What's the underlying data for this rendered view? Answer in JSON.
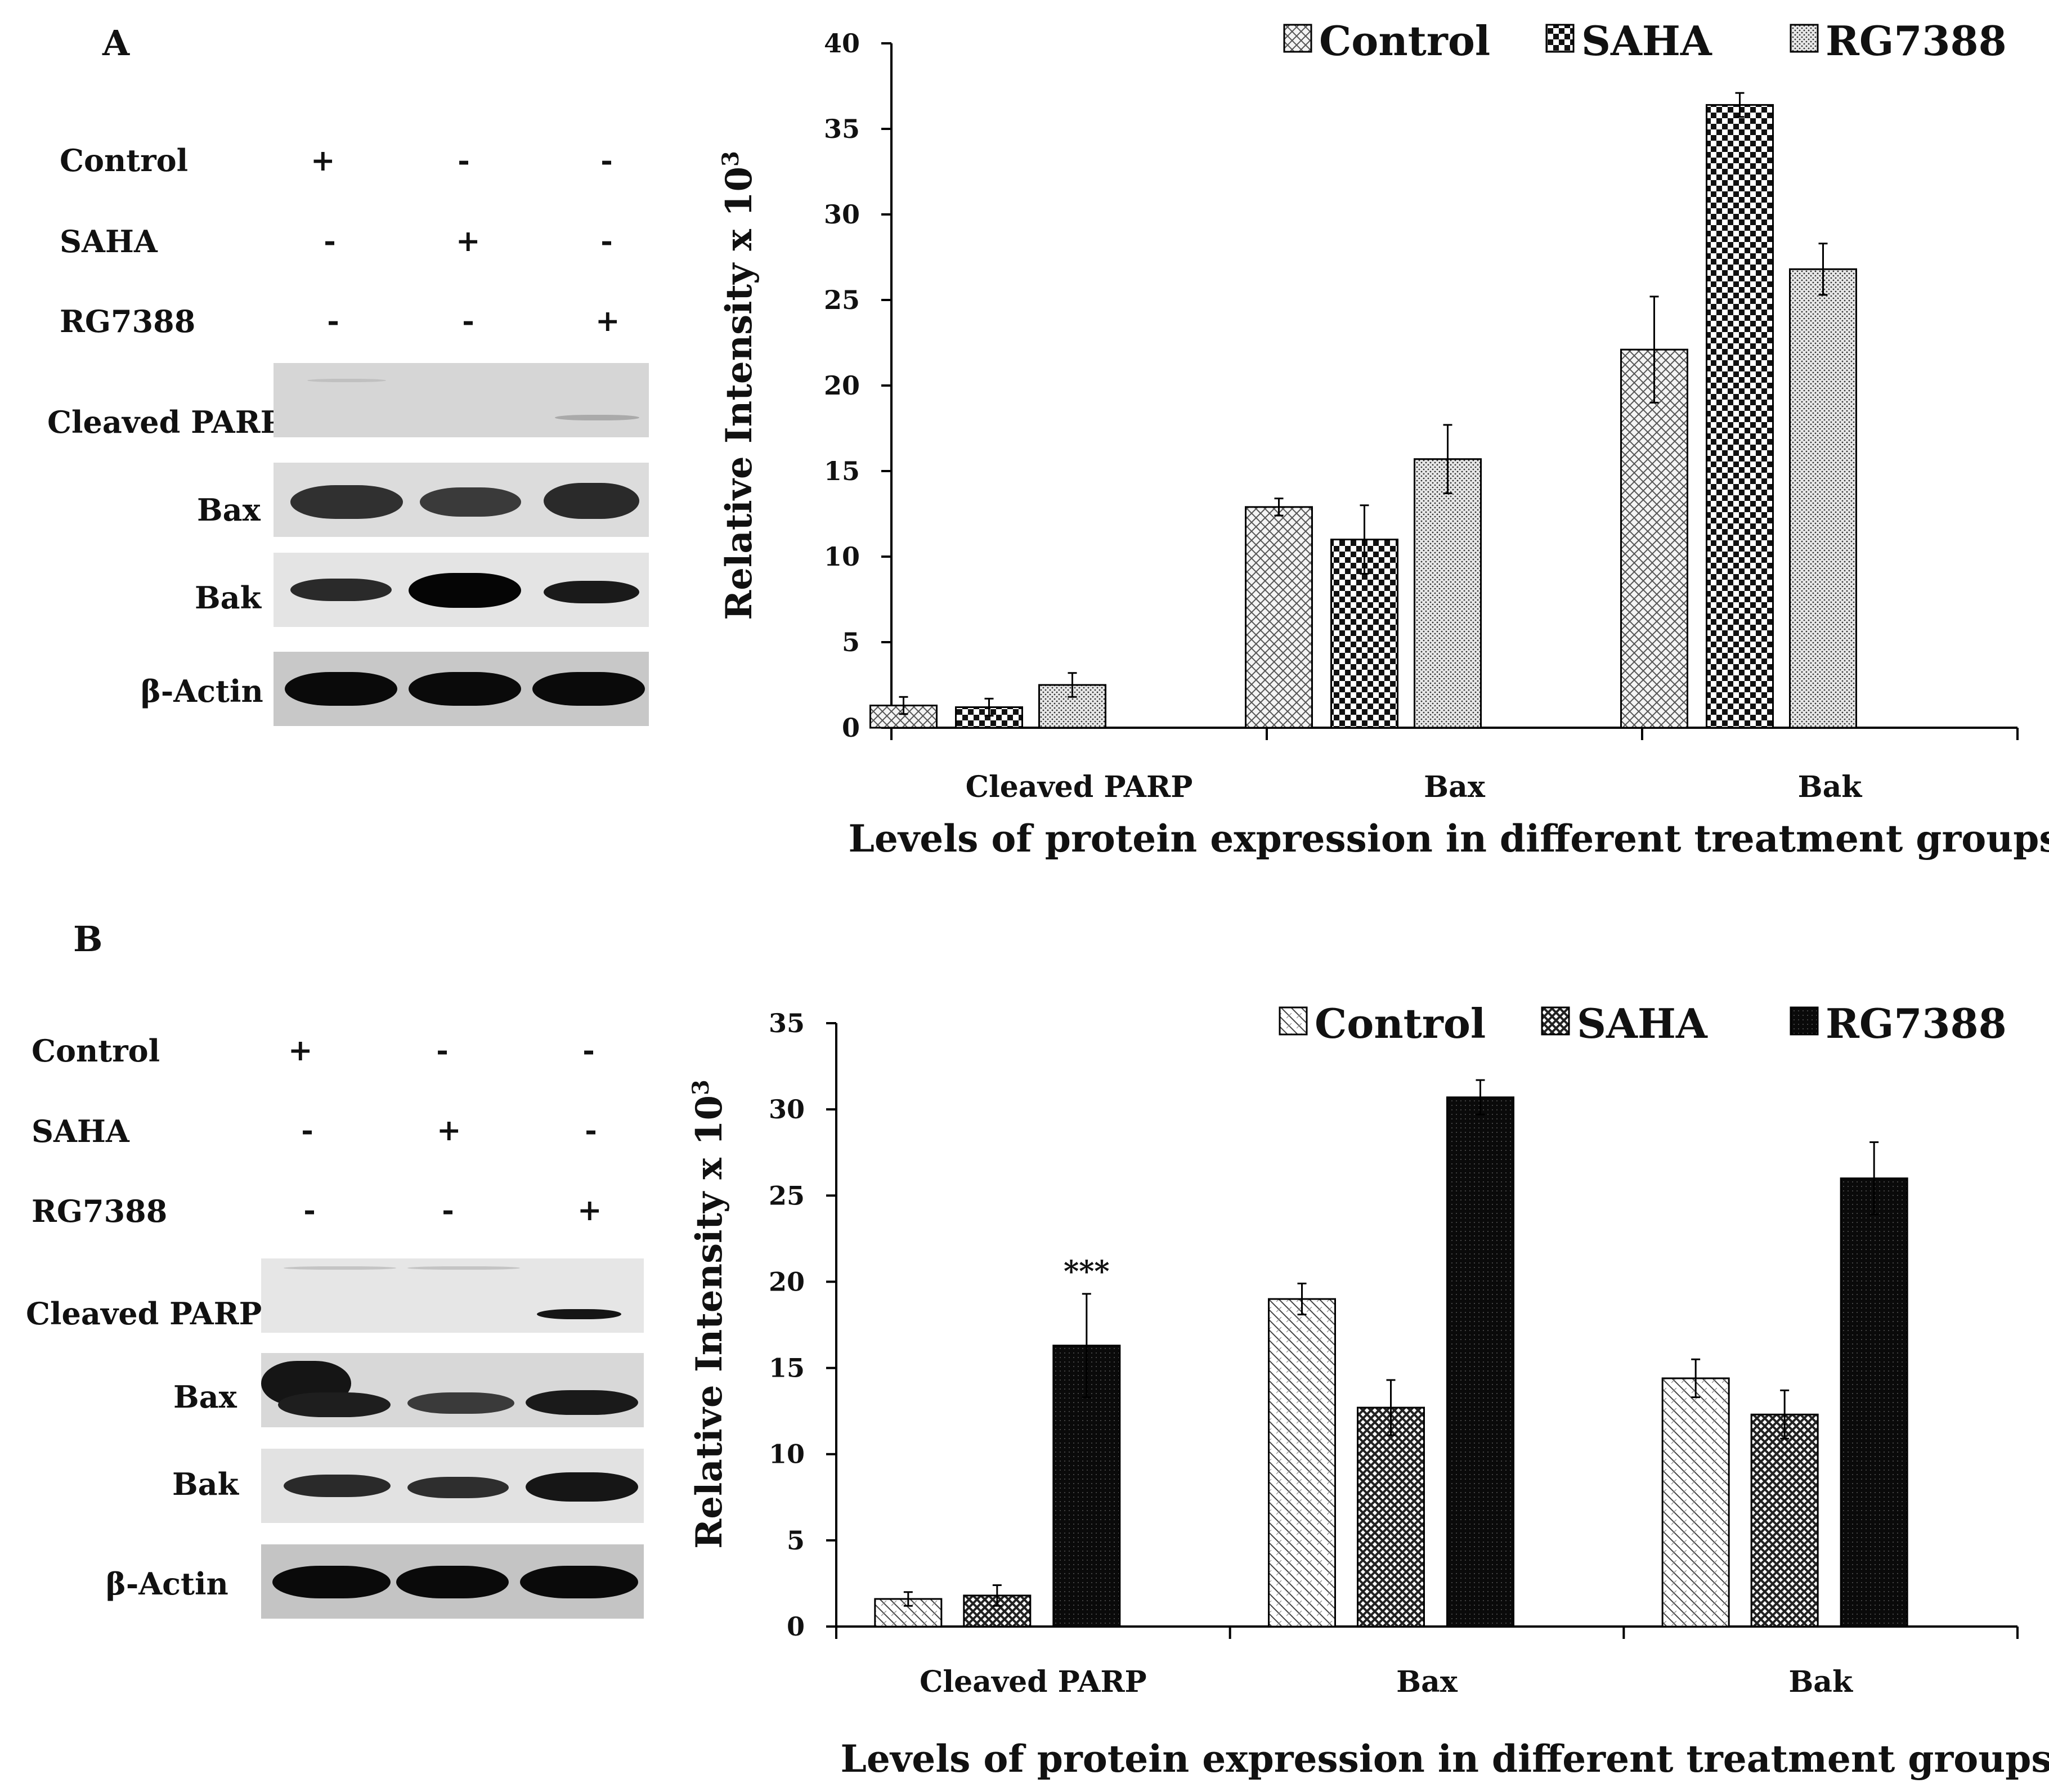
{
  "panels": [
    {
      "letter": "A",
      "treatment_labels": [
        "Control",
        "SAHA",
        "RG7388"
      ],
      "treatment_signs": [
        [
          "+",
          "-",
          "-"
        ],
        [
          "-",
          "+",
          "-"
        ],
        [
          "-",
          "-",
          "+"
        ]
      ],
      "blot_labels": [
        "Cleaved PARP",
        "Bax",
        "Bak",
        "β-Actin"
      ],
      "significance": ""
    },
    {
      "letter": "B",
      "treatment_labels": [
        "Control",
        "SAHA",
        "RG7388"
      ],
      "treatment_signs": [
        [
          "+",
          "-",
          "-"
        ],
        [
          "-",
          "+",
          "-"
        ],
        [
          "-",
          "-",
          "+"
        ]
      ],
      "blot_labels": [
        "Cleaved PARP",
        "Bax",
        "Bak",
        "β-Actin"
      ],
      "significance": "***"
    }
  ],
  "chart_data": [
    {
      "type": "bar",
      "title": "",
      "xlabel": "Levels of protein expression in different treatment groups",
      "ylabel": "Relative Intensity x 10",
      "ylabel_superscript": "3",
      "ylim": [
        0,
        40
      ],
      "yticks": [
        0,
        5,
        10,
        15,
        20,
        25,
        30,
        35,
        40
      ],
      "categories": [
        "Cleaved PARP",
        "Bax",
        "Bak"
      ],
      "legend_position": "top-right",
      "series": [
        {
          "name": "Control",
          "values": [
            1.3,
            12.9,
            22.1
          ],
          "errors": [
            0.5,
            0.5,
            3.1
          ]
        },
        {
          "name": "SAHA",
          "values": [
            1.2,
            11.0,
            36.4
          ],
          "errors": [
            0.5,
            2.0,
            0.7
          ]
        },
        {
          "name": "RG7388",
          "values": [
            2.5,
            15.7,
            26.8
          ],
          "errors": [
            0.7,
            2.0,
            1.5
          ]
        }
      ]
    },
    {
      "type": "bar",
      "title": "",
      "xlabel": "Levels of protein expression in different treatment groups",
      "ylabel": "Relative Intensity x 10",
      "ylabel_superscript": "3",
      "ylim": [
        0,
        35
      ],
      "yticks": [
        0,
        5,
        10,
        15,
        20,
        25,
        30,
        35
      ],
      "categories": [
        "Cleaved PARP",
        "Bax",
        "Bak"
      ],
      "legend_position": "top-right",
      "annotations": [
        {
          "text": "***",
          "category": "Cleaved PARP",
          "series": "RG7388"
        }
      ],
      "series": [
        {
          "name": "Control",
          "values": [
            1.6,
            19.0,
            14.4
          ],
          "errors": [
            0.4,
            0.9,
            1.1
          ]
        },
        {
          "name": "SAHA",
          "values": [
            1.8,
            12.7,
            12.3
          ],
          "errors": [
            0.6,
            1.6,
            1.4
          ]
        },
        {
          "name": "RG7388",
          "values": [
            16.3,
            30.7,
            26.0
          ],
          "errors": [
            3.0,
            1.0,
            2.1
          ]
        }
      ]
    }
  ]
}
